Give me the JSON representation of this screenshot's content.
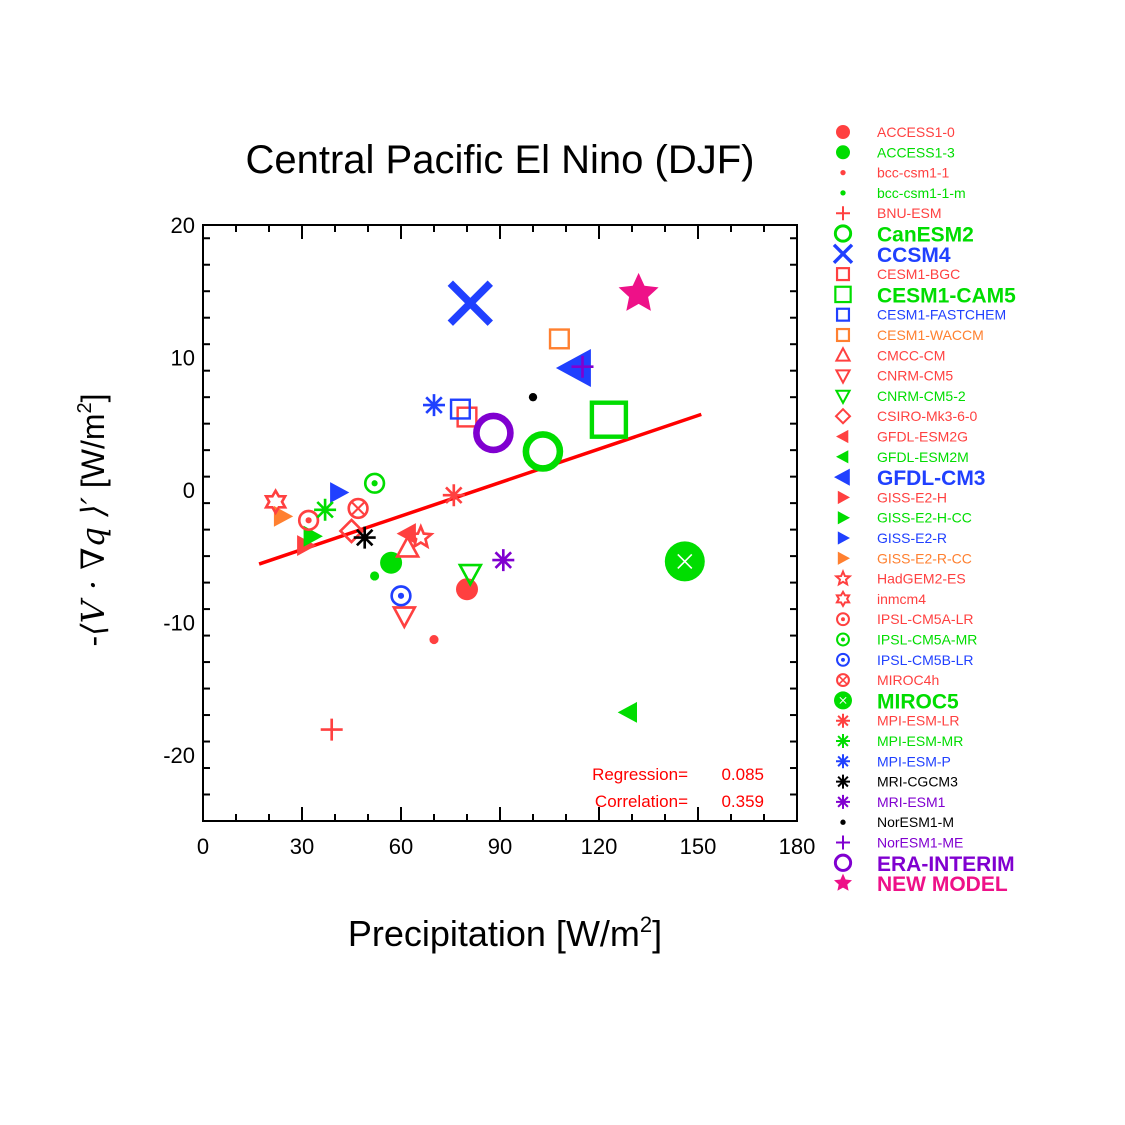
{
  "chart_data": {
    "type": "scatter",
    "title": "Central Pacific  El Nino (DJF)",
    "xlabel_main": "Precipitation [W/m",
    "xlabel_sup": "2",
    "xlabel_end": "]",
    "ylabel_unit": "[W/m",
    "ylabel_sup": "2",
    "ylabel_end": "]",
    "xlim": [
      0,
      180
    ],
    "ylim": [
      -25,
      20
    ],
    "xticks": [
      0,
      30,
      60,
      90,
      120,
      150,
      180
    ],
    "yticks": [
      20,
      10,
      0,
      -10,
      -20
    ],
    "regression_label": "Regression=",
    "regression_value": "0.085",
    "correlation_label": "Correlation=",
    "correlation_value": "0.359",
    "regression_line": {
      "x": [
        17,
        151
      ],
      "y": [
        -5.6,
        5.7
      ],
      "color": "#ff0000"
    },
    "series": [
      {
        "name": "ACCESS1-0",
        "x": 80,
        "y": -7.5,
        "marker": "filled-circle",
        "color": "#ff4040",
        "size": "medium",
        "bold": false
      },
      {
        "name": "ACCESS1-3",
        "x": 57,
        "y": -5.5,
        "marker": "filled-circle",
        "color": "#00dd00",
        "size": "medium",
        "bold": false
      },
      {
        "name": "bcc-csm1-1",
        "x": 70,
        "y": -11.3,
        "marker": "dot",
        "color": "#ff4040",
        "size": "medium",
        "bold": false
      },
      {
        "name": "bcc-csm1-1-m",
        "x": 52,
        "y": -6.5,
        "marker": "dot",
        "color": "#00dd00",
        "size": "medium",
        "bold": false
      },
      {
        "name": "BNU-ESM",
        "x": 39,
        "y": -18.1,
        "marker": "plus",
        "color": "#ff4040",
        "size": "medium",
        "bold": false
      },
      {
        "name": "CanESM2",
        "x": 103,
        "y": 2.9,
        "marker": "ring",
        "color": "#00dd00",
        "size": "large",
        "bold": true
      },
      {
        "name": "CCSM4",
        "x": 81,
        "y": 14.1,
        "marker": "x",
        "color": "#2040ff",
        "size": "large",
        "bold": true
      },
      {
        "name": "CESM1-BGC",
        "x": 80,
        "y": 5.5,
        "marker": "square",
        "color": "#ff4040",
        "size": "medium",
        "bold": false
      },
      {
        "name": "CESM1-CAM5",
        "x": 123,
        "y": 5.3,
        "marker": "square",
        "color": "#00dd00",
        "size": "large",
        "bold": true
      },
      {
        "name": "CESM1-FASTCHEM",
        "x": 78,
        "y": 6.1,
        "marker": "square",
        "color": "#2040ff",
        "size": "medium",
        "bold": false
      },
      {
        "name": "CESM1-WACCM",
        "x": 108,
        "y": 11.4,
        "marker": "square",
        "color": "#ff8030",
        "size": "medium",
        "bold": false
      },
      {
        "name": "CMCC-CM",
        "x": 62,
        "y": -4.4,
        "marker": "triangle-up",
        "color": "#ff4040",
        "size": "medium",
        "bold": false
      },
      {
        "name": "CNRM-CM5",
        "x": 61,
        "y": -9.5,
        "marker": "triangle-down",
        "color": "#ff4040",
        "size": "medium",
        "bold": false
      },
      {
        "name": "CNRM-CM5-2",
        "x": 81,
        "y": -6.3,
        "marker": "triangle-down",
        "color": "#00dd00",
        "size": "medium",
        "bold": false
      },
      {
        "name": "CSIRO-Mk3-6-0",
        "x": 45,
        "y": -3.1,
        "marker": "diamond",
        "color": "#ff4040",
        "size": "medium",
        "bold": false
      },
      {
        "name": "GFDL-ESM2G",
        "x": 62,
        "y": -3.3,
        "marker": "triangle-left",
        "color": "#ff4040",
        "size": "medium",
        "bold": false
      },
      {
        "name": "GFDL-ESM2M",
        "x": 129,
        "y": -16.8,
        "marker": "triangle-left",
        "color": "#00dd00",
        "size": "medium",
        "bold": false
      },
      {
        "name": "GFDL-CM3",
        "x": 113,
        "y": 9.2,
        "marker": "triangle-left",
        "color": "#2040ff",
        "size": "large",
        "bold": true
      },
      {
        "name": "GISS-E2-H",
        "x": 31,
        "y": -4.2,
        "marker": "triangle-right",
        "color": "#ff4040",
        "size": "medium",
        "bold": false
      },
      {
        "name": "GISS-E2-H-CC",
        "x": 33,
        "y": -3.5,
        "marker": "triangle-right",
        "color": "#00dd00",
        "size": "medium",
        "bold": false
      },
      {
        "name": "GISS-E2-R",
        "x": 41,
        "y": -0.2,
        "marker": "triangle-right",
        "color": "#2040ff",
        "size": "medium",
        "bold": false
      },
      {
        "name": "GISS-E2-R-CC",
        "x": 24,
        "y": -2.0,
        "marker": "triangle-right",
        "color": "#ff8030",
        "size": "medium",
        "bold": false
      },
      {
        "name": "HadGEM2-ES",
        "x": 66,
        "y": -3.6,
        "marker": "star",
        "color": "#ff4040",
        "size": "medium",
        "bold": false
      },
      {
        "name": "inmcm4",
        "x": 22,
        "y": -0.9,
        "marker": "hexagram",
        "color": "#ff4040",
        "size": "medium",
        "bold": false
      },
      {
        "name": "IPSL-CM5A-LR",
        "x": 32,
        "y": -2.3,
        "marker": "bullseye",
        "color": "#ff4040",
        "size": "medium",
        "bold": false
      },
      {
        "name": "IPSL-CM5A-MR",
        "x": 52,
        "y": 0.5,
        "marker": "bullseye",
        "color": "#00dd00",
        "size": "medium",
        "bold": false
      },
      {
        "name": "IPSL-CM5B-LR",
        "x": 60,
        "y": -8.0,
        "marker": "bullseye",
        "color": "#2040ff",
        "size": "medium",
        "bold": false
      },
      {
        "name": "MIROC4h",
        "x": 47,
        "y": -1.4,
        "marker": "crossed-circle",
        "color": "#ff4040",
        "size": "medium",
        "bold": false
      },
      {
        "name": "MIROC5",
        "x": 146,
        "y": -5.4,
        "marker": "filled-crossed-circle",
        "color": "#00dd00",
        "size": "large",
        "bold": true
      },
      {
        "name": "MPI-ESM-LR",
        "x": 76,
        "y": -0.4,
        "marker": "asterisk",
        "color": "#ff4040",
        "size": "medium",
        "bold": false
      },
      {
        "name": "MPI-ESM-MR",
        "x": 37,
        "y": -1.5,
        "marker": "asterisk",
        "color": "#00dd00",
        "size": "medium",
        "bold": false
      },
      {
        "name": "MPI-ESM-P",
        "x": 70,
        "y": 6.4,
        "marker": "asterisk",
        "color": "#2040ff",
        "size": "medium",
        "bold": false
      },
      {
        "name": "MRI-CGCM3",
        "x": 49,
        "y": -3.6,
        "marker": "asterisk",
        "color": "#000000",
        "size": "medium",
        "bold": false
      },
      {
        "name": "MRI-ESM1",
        "x": 91,
        "y": -5.3,
        "marker": "asterisk",
        "color": "#8000d0",
        "size": "medium",
        "bold": false
      },
      {
        "name": "NorESM1-M",
        "x": 100,
        "y": 7.0,
        "marker": "dot",
        "color": "#000000",
        "size": "medium",
        "bold": false
      },
      {
        "name": "NorESM1-ME",
        "x": 115,
        "y": 9.3,
        "marker": "plus",
        "color": "#8000d0",
        "size": "medium",
        "bold": false
      },
      {
        "name": "ERA-INTERIM",
        "x": 88,
        "y": 4.3,
        "marker": "ring",
        "color": "#8000d0",
        "size": "large",
        "bold": true
      },
      {
        "name": "NEW MODEL",
        "x": 132,
        "y": 14.8,
        "marker": "filled-star",
        "color": "#ee1188",
        "size": "large",
        "bold": true
      }
    ]
  }
}
